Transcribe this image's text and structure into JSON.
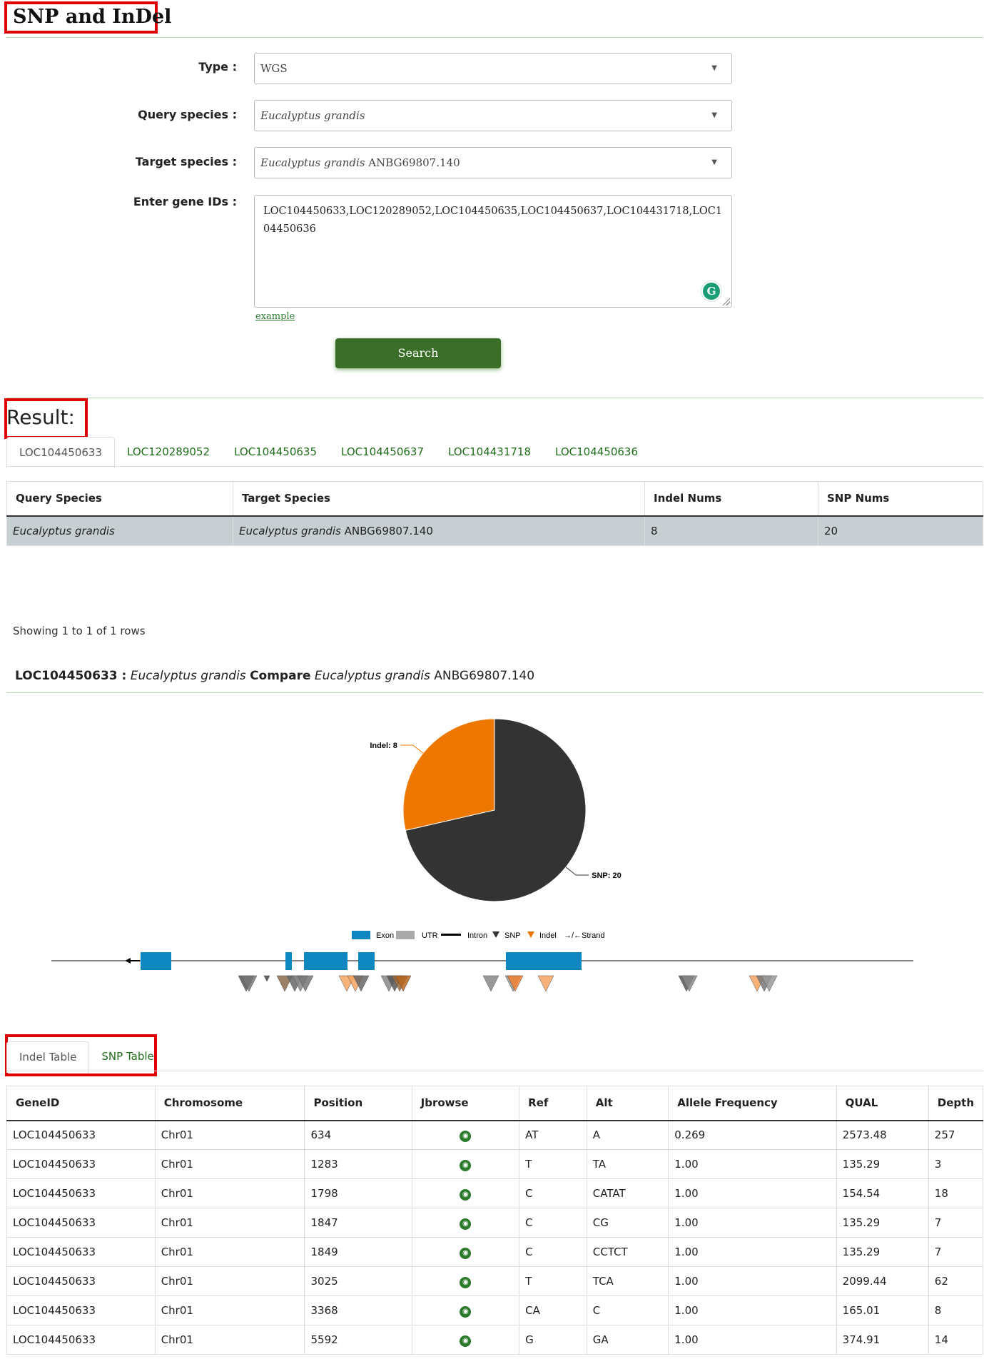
{
  "page": {
    "title": "SNP and InDel"
  },
  "form": {
    "type_label": "Type :",
    "type_value": "WGS",
    "query_label": "Query species :",
    "query_value_italic": "Eucalyptus grandis",
    "target_label": "Target species :",
    "target_value_italic": "Eucalyptus grandis",
    "target_value_rest": "ANBG69807.140",
    "gene_label": "Enter gene IDs :",
    "gene_value": "LOC104450633,LOC120289052,LOC104450635,LOC104450637,LOC104431718,LOC104450636",
    "example_link": "example",
    "search_button": "Search"
  },
  "result": {
    "heading": "Result:",
    "gene_tabs": [
      "LOC104450633",
      "LOC120289052",
      "LOC104450635",
      "LOC104450637",
      "LOC104431718",
      "LOC104450636"
    ],
    "active_tab": "LOC104450633",
    "summary_headers": [
      "Query Species",
      "Target Species",
      "Indel Nums",
      "SNP Nums"
    ],
    "summary_row": {
      "query": "Eucalyptus grandis",
      "target_italic": "Eucalyptus grandis",
      "target_rest": "ANBG69807.140",
      "indel": "8",
      "snp": "20"
    },
    "showing": "Showing 1 to 1 of 1 rows"
  },
  "compare": {
    "gene": "LOC104450633 :",
    "query_italic": "Eucalyptus grandis",
    "compare_word": "Compare",
    "target_italic": "Eucalyptus grandis",
    "target_rest": "ANBG69807.140"
  },
  "chart_data": {
    "type": "pie",
    "slices": [
      {
        "label": "Indel: 8",
        "name": "Indel",
        "value": 8,
        "color": "#ee7700"
      },
      {
        "label": "SNP: 20",
        "name": "SNP",
        "value": 20,
        "color": "#333333"
      }
    ]
  },
  "gene_structure": {
    "legend": [
      {
        "label": "Exon",
        "color": "#0e86c0",
        "shape": "rect"
      },
      {
        "label": "UTR",
        "color": "#a9a9a9",
        "shape": "rect"
      },
      {
        "label": "Intron",
        "color": "#000000",
        "shape": "line"
      },
      {
        "label": "SNP",
        "color": "#333333",
        "shape": "triangle"
      },
      {
        "label": "Indel",
        "color": "#ee7700",
        "shape": "triangle"
      },
      {
        "label": "→/←Strand",
        "color": "#000000",
        "shape": "text"
      }
    ],
    "exon_color": "#0e86c0"
  },
  "variant_tabs": {
    "labels": [
      "Indel Table",
      "SNP Table"
    ],
    "active": "Indel Table"
  },
  "indel_table": {
    "headers": [
      "GeneID",
      "Chromosome",
      "Position",
      "Jbrowse",
      "Ref",
      "Alt",
      "Allele Frequency",
      "QUAL",
      "Depth"
    ],
    "rows": [
      [
        "LOC104450633",
        "Chr01",
        "634",
        "",
        "AT",
        "A",
        "0.269",
        "2573.48",
        "257"
      ],
      [
        "LOC104450633",
        "Chr01",
        "1283",
        "",
        "T",
        "TA",
        "1.00",
        "135.29",
        "3"
      ],
      [
        "LOC104450633",
        "Chr01",
        "1798",
        "",
        "C",
        "CATAT",
        "1.00",
        "154.54",
        "18"
      ],
      [
        "LOC104450633",
        "Chr01",
        "1847",
        "",
        "C",
        "CG",
        "1.00",
        "135.29",
        "7"
      ],
      [
        "LOC104450633",
        "Chr01",
        "1849",
        "",
        "C",
        "CCTCT",
        "1.00",
        "135.29",
        "7"
      ],
      [
        "LOC104450633",
        "Chr01",
        "3025",
        "",
        "T",
        "TCA",
        "1.00",
        "2099.44",
        "62"
      ],
      [
        "LOC104450633",
        "Chr01",
        "3368",
        "",
        "CA",
        "C",
        "1.00",
        "165.01",
        "8"
      ],
      [
        "LOC104450633",
        "Chr01",
        "5592",
        "",
        "G",
        "GA",
        "1.00",
        "374.91",
        "14"
      ]
    ]
  },
  "colors": {
    "accent_green": "#3a6e28",
    "link_green": "#1f6d1a",
    "highlight_red": "#e00000"
  }
}
